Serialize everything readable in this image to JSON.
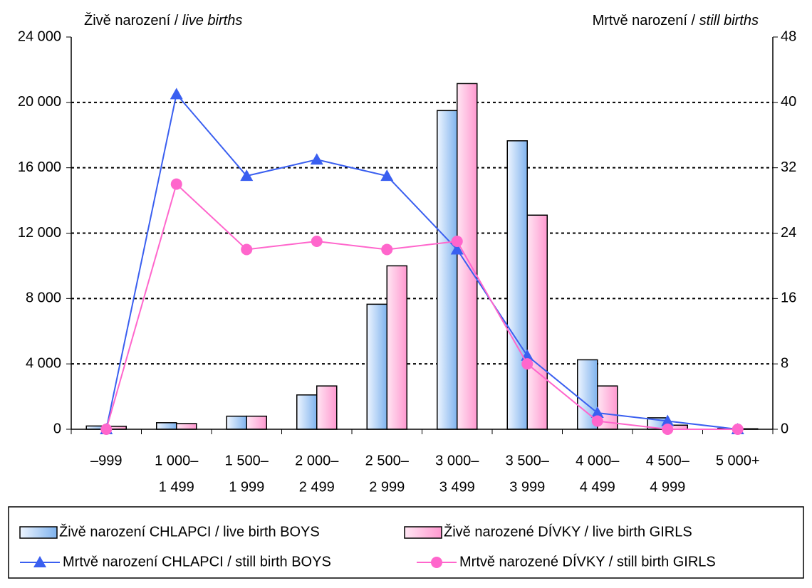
{
  "chart_data": {
    "type": "bar_line",
    "ylabel": "Živě narození / ",
    "ylabel_italic": "live births",
    "y2label": "Mrtvě narození / ",
    "y2label_italic": "still births",
    "categories": [
      [
        "–999"
      ],
      [
        "1 000–",
        "1 499"
      ],
      [
        "1 500–",
        "1 999"
      ],
      [
        "2 000–",
        "2 499"
      ],
      [
        "2 500–",
        "2 999"
      ],
      [
        "3 000–",
        "3 499"
      ],
      [
        "3 500–",
        "3 999"
      ],
      [
        "4 000–",
        "4 499"
      ],
      [
        "4 500–",
        "4 999"
      ],
      [
        "5 000+"
      ]
    ],
    "series": [
      {
        "name": "Živě narození CHLAPCI / live birth BOYS",
        "type": "bar",
        "color": "#7fb3ee",
        "values": [
          200,
          400,
          800,
          2100,
          7650,
          19500,
          17650,
          4250,
          700,
          50
        ]
      },
      {
        "name": "Živě narozené DÍVKY / live birth GIRLS",
        "type": "bar",
        "color": "#ff99d0",
        "values": [
          180,
          350,
          800,
          2650,
          10000,
          21150,
          13100,
          2650,
          250,
          30
        ]
      },
      {
        "name": "Mrtvě narození CHLAPCI / still birth BOYS",
        "type": "line",
        "marker": "triangle",
        "axis": "y2",
        "color": "#3a5ff0",
        "values": [
          0,
          41,
          31,
          33,
          31,
          22,
          9,
          2,
          1,
          0
        ]
      },
      {
        "name": "Mrtvě narozené DÍVKY / still birth GIRLS",
        "type": "line",
        "marker": "circle",
        "axis": "y2",
        "color": "#ff66cc",
        "values": [
          0,
          30,
          22,
          23,
          22,
          23,
          8,
          1,
          0,
          0
        ]
      }
    ],
    "ylim": [
      0,
      24000
    ],
    "yticks": [
      0,
      {
        "value": 4000,
        "label": "4 000"
      },
      {
        "value": 8000,
        "label": "8 000"
      },
      {
        "value": 12000,
        "label": "12 000"
      },
      {
        "value": 16000,
        "label": "16 000"
      },
      {
        "value": 20000,
        "label": "20 000"
      },
      {
        "value": 24000,
        "label": "24 000"
      }
    ],
    "y2lim": [
      0,
      48
    ],
    "y2ticks": [
      0,
      8,
      16,
      24,
      32,
      40,
      48
    ],
    "grid": true,
    "legend": "bottom"
  }
}
